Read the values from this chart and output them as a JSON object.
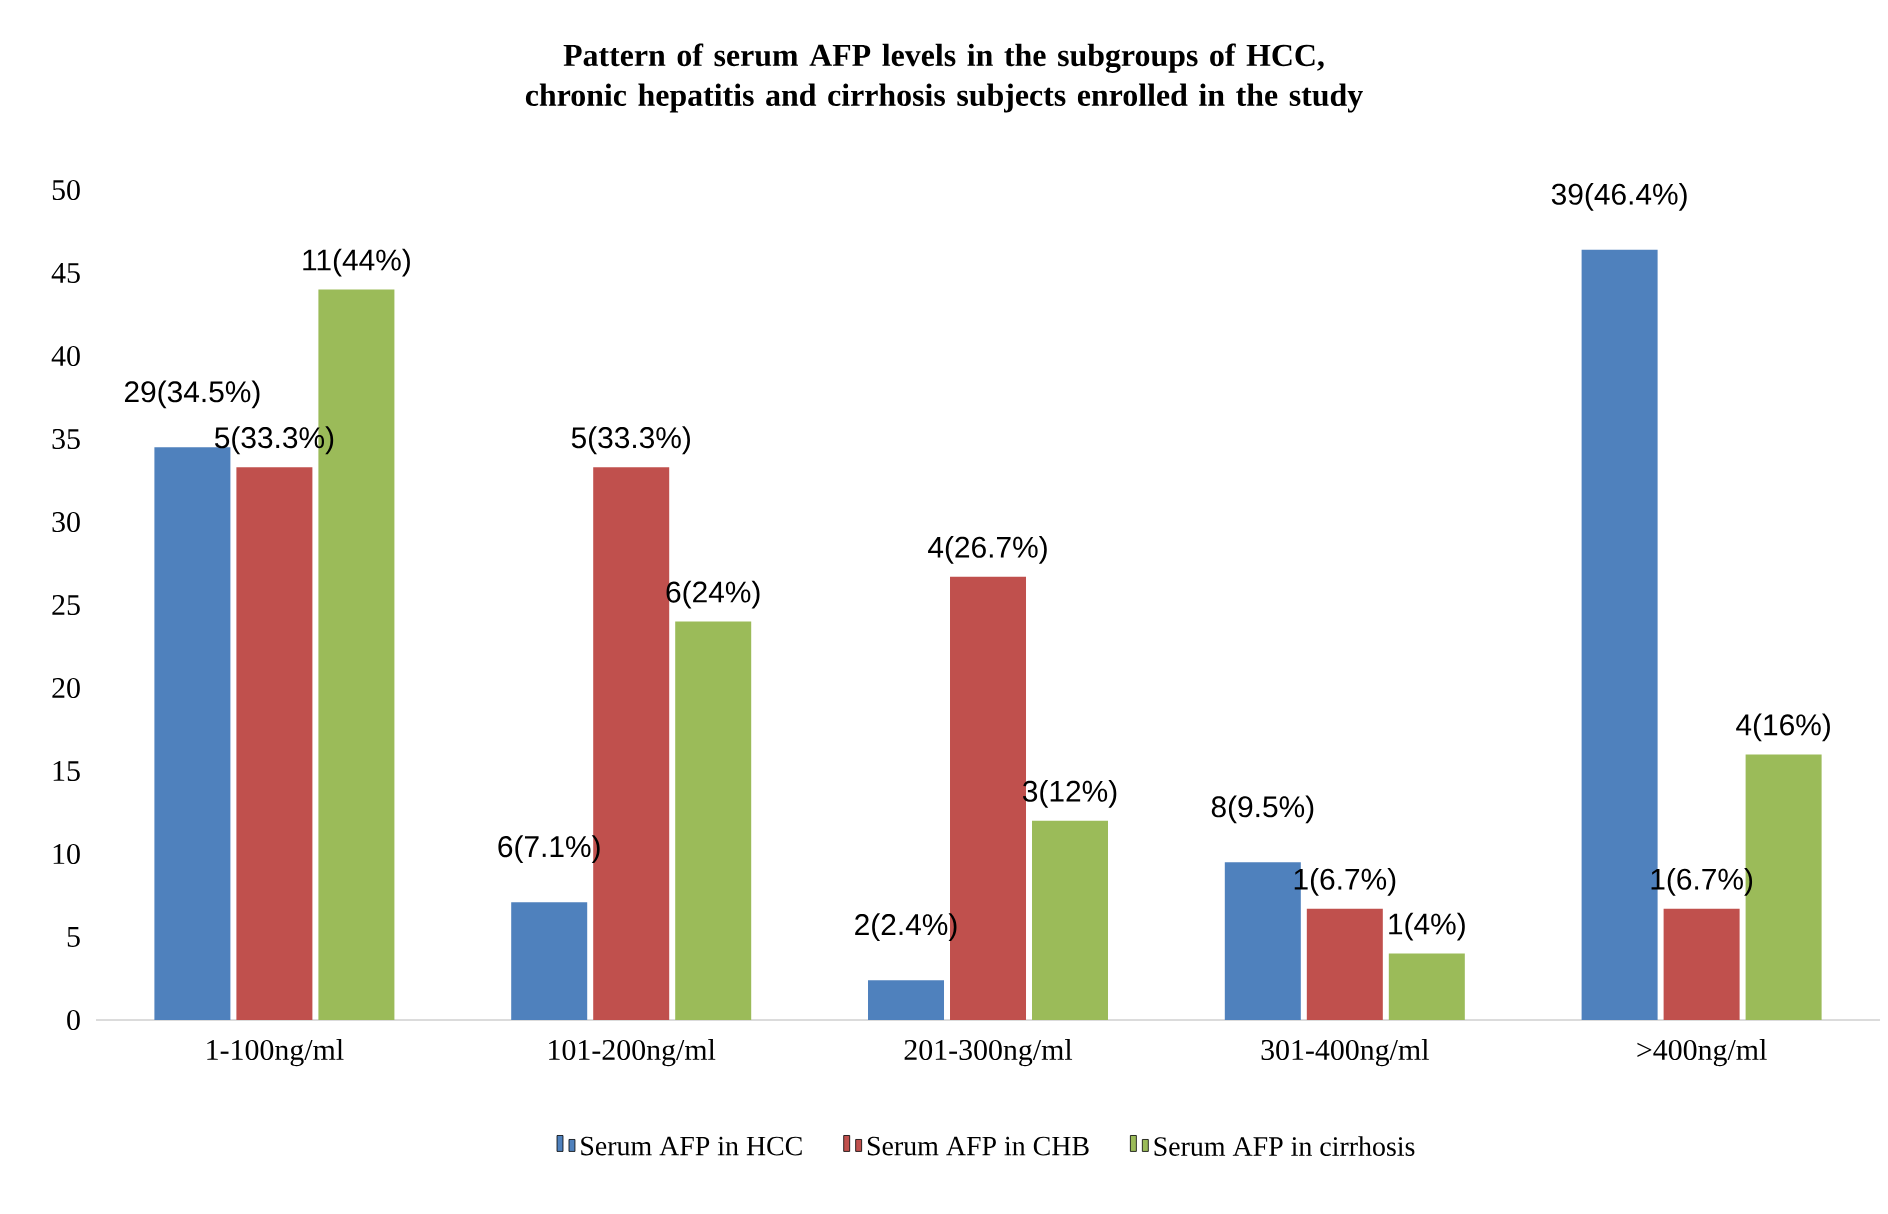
{
  "chart_data": {
    "type": "bar",
    "title": "Pattern of serum AFP levels  in the subgroups of HCC, chronic hepatitis and cirrhosis subjects enrolled in the study",
    "categories": [
      "1-100ng/ml",
      "101-200ng/ml",
      "201-300ng/ml",
      "301-400ng/ml",
      ">400ng/ml"
    ],
    "series": [
      {
        "name": "Serum AFP in HCC",
        "color": "#4f81bd",
        "values": [
          34.5,
          7.1,
          2.4,
          9.5,
          46.4
        ],
        "value_labels": [
          "29(34.5%)",
          "6(7.1%)",
          "2(2.4%)",
          "8(9.5%)",
          "39(46.4%)"
        ]
      },
      {
        "name": "Serum AFP in CHB",
        "color": "#c0504d",
        "values": [
          33.3,
          33.3,
          26.7,
          6.7,
          6.7
        ],
        "value_labels": [
          "5(33.3%)",
          "5(33.3%)",
          "4(26.7%)",
          "1(6.7%)",
          "1(6.7%)"
        ]
      },
      {
        "name": "Serum AFP in cirrhosis",
        "color": "#9bbb59",
        "values": [
          44,
          24,
          12,
          4,
          16
        ],
        "value_labels": [
          "11(44%)",
          "6(24%)",
          "3(12%)",
          "1(4%)",
          "4(16%)"
        ]
      }
    ],
    "ylim": [
      0,
      50
    ],
    "yticks": [
      0,
      5,
      10,
      15,
      20,
      25,
      30,
      35,
      40,
      45,
      50
    ],
    "grid": false,
    "legend": "bottom"
  }
}
